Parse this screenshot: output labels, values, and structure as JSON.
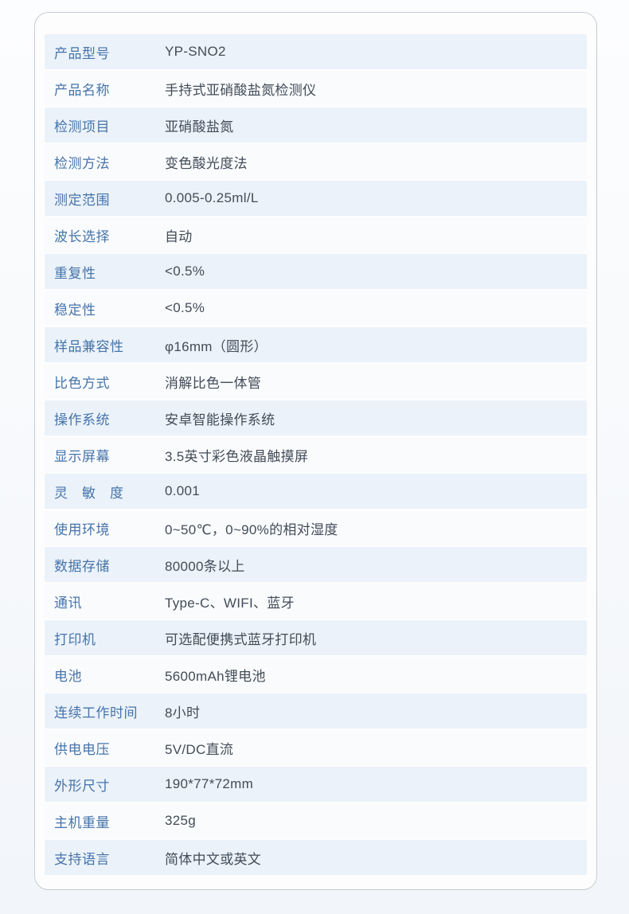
{
  "page": {
    "background_top": "#fcfdfe",
    "background_bottom": "#f2f5f9"
  },
  "card": {
    "background": "#fdfdfe",
    "border_color": "#c6ccd3",
    "row_odd_color": "#ebf2f9",
    "row_even_color": "#fafbfd",
    "label_text_color": "#4674ab",
    "value_text_color": "#424c58"
  },
  "spec_table": {
    "rows": [
      {
        "label": "产品型号",
        "value": "YP-SNO2"
      },
      {
        "label": "产品名称",
        "value": "手持式亚硝酸盐氮检测仪"
      },
      {
        "label": "检测项目",
        "value": "亚硝酸盐氮"
      },
      {
        "label": "检测方法",
        "value": "变色酸光度法"
      },
      {
        "label": "测定范围",
        "value": "0.005-0.25ml/L"
      },
      {
        "label": "波长选择",
        "value": "自动"
      },
      {
        "label": "重复性",
        "value": "<0.5%"
      },
      {
        "label": "稳定性",
        "value": "<0.5%"
      },
      {
        "label": "样品兼容性",
        "value": "φ16mm（圆形）"
      },
      {
        "label": "比色方式",
        "value": "消解比色一体管"
      },
      {
        "label": "操作系统",
        "value": "安卓智能操作系统"
      },
      {
        "label": "显示屏幕",
        "value": "3.5英寸彩色液晶触摸屏"
      },
      {
        "label": "灵　敏　度",
        "value": "0.001"
      },
      {
        "label": "使用环境",
        "value": "0~50℃，0~90%的相对湿度"
      },
      {
        "label": "数据存储",
        "value": "80000条以上"
      },
      {
        "label": "通讯",
        "value": "Type-C、WIFI、蓝牙"
      },
      {
        "label": "打印机",
        "value": "可选配便携式蓝牙打印机"
      },
      {
        "label": "电池",
        "value": "5600mAh锂电池"
      },
      {
        "label": "连续工作时间",
        "value": "8小时"
      },
      {
        "label": "供电电压",
        "value": "5V/DC直流"
      },
      {
        "label": "外形尺寸",
        "value": "190*77*72mm"
      },
      {
        "label": "主机重量",
        "value": "325g"
      },
      {
        "label": "支持语言",
        "value": "简体中文或英文"
      }
    ]
  }
}
